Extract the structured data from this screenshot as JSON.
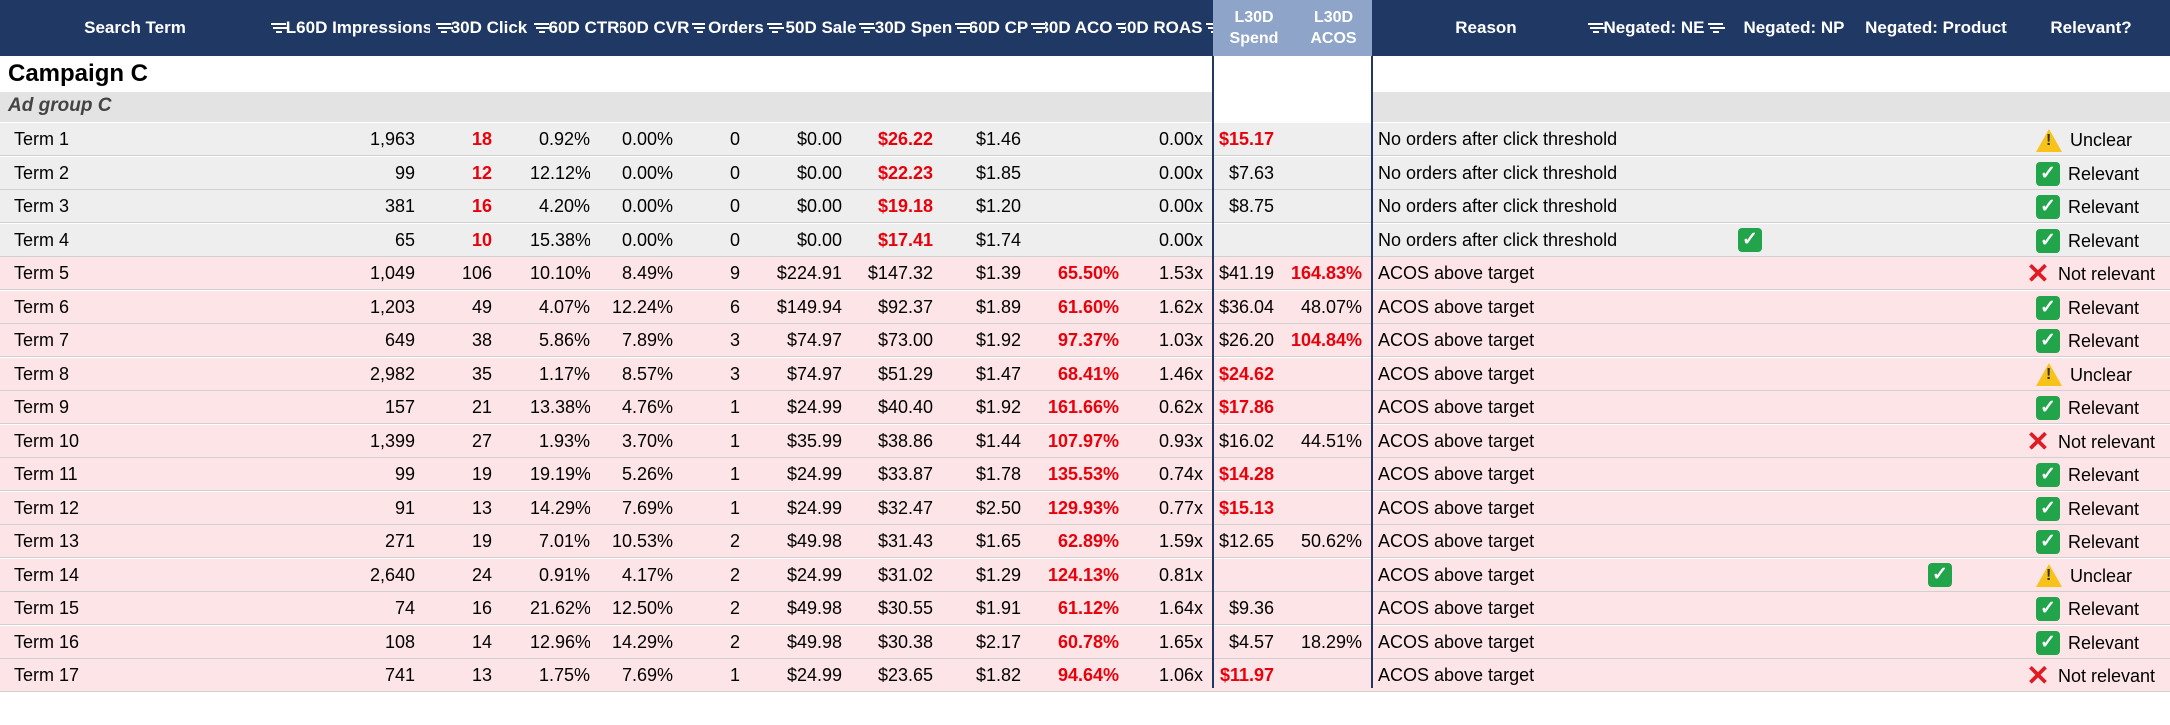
{
  "headers": {
    "search_term": "Search Term",
    "impressions": "L60D Impressions",
    "clicks": "30D Click",
    "ctr": "60D CTR",
    "cvr": "60D CVR",
    "orders": "Orders",
    "sales": "50D Sale",
    "spend": "30D Spen",
    "cpc": "60D CP",
    "acos": "30D ACO",
    "roas": "60D ROAS",
    "l30_spend_1": "L30D",
    "l30_spend_2": "Spend",
    "l30_acos_1": "L30D",
    "l30_acos_2": "ACOS",
    "reason": "Reason",
    "neg_ne": "Negated: NE",
    "neg_np": "Negated: NP",
    "neg_product": "Negated: Product",
    "relevant": "Relevant?"
  },
  "campaign": "Campaign C",
  "ad_group": "Ad group C",
  "colors": {
    "header": "#1f3864",
    "l30_header": "#8ea4c8",
    "alert_red": "#e8000b",
    "row_pink": "#fde4e6",
    "row_grey": "#eeeeee"
  },
  "rows": [
    {
      "term": "Term 1",
      "imp": "1,963",
      "clicks": "18",
      "ctr": "0.92%",
      "cvr": "0.00%",
      "orders": "0",
      "sales": "$0.00",
      "spend": "$26.22",
      "cpc": "$1.46",
      "acos": "",
      "roas": "0.00x",
      "l30spend": "$15.17",
      "l30acos": "",
      "reason": "No orders after click threshold",
      "ne": "",
      "np": "",
      "product": "",
      "relevant": "Unclear",
      "icon": "warning-icon",
      "band": "grey",
      "red": [
        "clicks",
        "spend",
        "l30spend"
      ]
    },
    {
      "term": "Term 2",
      "imp": "99",
      "clicks": "12",
      "ctr": "12.12%",
      "cvr": "0.00%",
      "orders": "0",
      "sales": "$0.00",
      "spend": "$22.23",
      "cpc": "$1.85",
      "acos": "",
      "roas": "0.00x",
      "l30spend": "$7.63",
      "l30acos": "",
      "reason": "No orders after click threshold",
      "ne": "",
      "np": "",
      "product": "",
      "relevant": "Relevant",
      "icon": "check-icon",
      "band": "grey",
      "red": [
        "clicks",
        "spend"
      ]
    },
    {
      "term": "Term 3",
      "imp": "381",
      "clicks": "16",
      "ctr": "4.20%",
      "cvr": "0.00%",
      "orders": "0",
      "sales": "$0.00",
      "spend": "$19.18",
      "cpc": "$1.20",
      "acos": "",
      "roas": "0.00x",
      "l30spend": "$8.75",
      "l30acos": "",
      "reason": "No orders after click threshold",
      "ne": "",
      "np": "",
      "product": "",
      "relevant": "Relevant",
      "icon": "check-icon",
      "band": "grey",
      "red": [
        "clicks",
        "spend"
      ]
    },
    {
      "term": "Term 4",
      "imp": "65",
      "clicks": "10",
      "ctr": "15.38%",
      "cvr": "0.00%",
      "orders": "0",
      "sales": "$0.00",
      "spend": "$17.41",
      "cpc": "$1.74",
      "acos": "",
      "roas": "0.00x",
      "l30spend": "",
      "l30acos": "",
      "reason": "No orders after click threshold",
      "ne": "",
      "np": "check",
      "product": "",
      "relevant": "Relevant",
      "icon": "check-icon",
      "band": "grey",
      "red": [
        "clicks",
        "spend"
      ]
    },
    {
      "term": "Term 5",
      "imp": "1,049",
      "clicks": "106",
      "ctr": "10.10%",
      "cvr": "8.49%",
      "orders": "9",
      "sales": "$224.91",
      "spend": "$147.32",
      "cpc": "$1.39",
      "acos": "65.50%",
      "roas": "1.53x",
      "l30spend": "$41.19",
      "l30acos": "164.83%",
      "reason": "ACOS above target",
      "ne": "",
      "np": "",
      "product": "",
      "relevant": "Not relevant",
      "icon": "x-icon",
      "band": "pink",
      "red": [
        "acos",
        "l30acos"
      ]
    },
    {
      "term": "Term 6",
      "imp": "1,203",
      "clicks": "49",
      "ctr": "4.07%",
      "cvr": "12.24%",
      "orders": "6",
      "sales": "$149.94",
      "spend": "$92.37",
      "cpc": "$1.89",
      "acos": "61.60%",
      "roas": "1.62x",
      "l30spend": "$36.04",
      "l30acos": "48.07%",
      "reason": "ACOS above target",
      "ne": "",
      "np": "",
      "product": "",
      "relevant": "Relevant",
      "icon": "check-icon",
      "band": "pink",
      "red": [
        "acos"
      ]
    },
    {
      "term": "Term 7",
      "imp": "649",
      "clicks": "38",
      "ctr": "5.86%",
      "cvr": "7.89%",
      "orders": "3",
      "sales": "$74.97",
      "spend": "$73.00",
      "cpc": "$1.92",
      "acos": "97.37%",
      "roas": "1.03x",
      "l30spend": "$26.20",
      "l30acos": "104.84%",
      "reason": "ACOS above target",
      "ne": "",
      "np": "",
      "product": "",
      "relevant": "Relevant",
      "icon": "check-icon",
      "band": "pink",
      "red": [
        "acos",
        "l30acos"
      ]
    },
    {
      "term": "Term 8",
      "imp": "2,982",
      "clicks": "35",
      "ctr": "1.17%",
      "cvr": "8.57%",
      "orders": "3",
      "sales": "$74.97",
      "spend": "$51.29",
      "cpc": "$1.47",
      "acos": "68.41%",
      "roas": "1.46x",
      "l30spend": "$24.62",
      "l30acos": "",
      "reason": "ACOS above target",
      "ne": "",
      "np": "",
      "product": "",
      "relevant": "Unclear",
      "icon": "warning-icon",
      "band": "pink",
      "red": [
        "acos",
        "l30spend"
      ]
    },
    {
      "term": "Term 9",
      "imp": "157",
      "clicks": "21",
      "ctr": "13.38%",
      "cvr": "4.76%",
      "orders": "1",
      "sales": "$24.99",
      "spend": "$40.40",
      "cpc": "$1.92",
      "acos": "161.66%",
      "roas": "0.62x",
      "l30spend": "$17.86",
      "l30acos": "",
      "reason": "ACOS above target",
      "ne": "",
      "np": "",
      "product": "",
      "relevant": "Relevant",
      "icon": "check-icon",
      "band": "pink",
      "red": [
        "acos",
        "l30spend"
      ]
    },
    {
      "term": "Term 10",
      "imp": "1,399",
      "clicks": "27",
      "ctr": "1.93%",
      "cvr": "3.70%",
      "orders": "1",
      "sales": "$35.99",
      "spend": "$38.86",
      "cpc": "$1.44",
      "acos": "107.97%",
      "roas": "0.93x",
      "l30spend": "$16.02",
      "l30acos": "44.51%",
      "reason": "ACOS above target",
      "ne": "",
      "np": "",
      "product": "",
      "relevant": "Not relevant",
      "icon": "x-icon",
      "band": "pink",
      "red": [
        "acos"
      ]
    },
    {
      "term": "Term 11",
      "imp": "99",
      "clicks": "19",
      "ctr": "19.19%",
      "cvr": "5.26%",
      "orders": "1",
      "sales": "$24.99",
      "spend": "$33.87",
      "cpc": "$1.78",
      "acos": "135.53%",
      "roas": "0.74x",
      "l30spend": "$14.28",
      "l30acos": "",
      "reason": "ACOS above target",
      "ne": "",
      "np": "",
      "product": "",
      "relevant": "Relevant",
      "icon": "check-icon",
      "band": "pink",
      "red": [
        "acos",
        "l30spend"
      ]
    },
    {
      "term": "Term 12",
      "imp": "91",
      "clicks": "13",
      "ctr": "14.29%",
      "cvr": "7.69%",
      "orders": "1",
      "sales": "$24.99",
      "spend": "$32.47",
      "cpc": "$2.50",
      "acos": "129.93%",
      "roas": "0.77x",
      "l30spend": "$15.13",
      "l30acos": "",
      "reason": "ACOS above target",
      "ne": "",
      "np": "",
      "product": "",
      "relevant": "Relevant",
      "icon": "check-icon",
      "band": "pink",
      "red": [
        "acos",
        "l30spend"
      ]
    },
    {
      "term": "Term 13",
      "imp": "271",
      "clicks": "19",
      "ctr": "7.01%",
      "cvr": "10.53%",
      "orders": "2",
      "sales": "$49.98",
      "spend": "$31.43",
      "cpc": "$1.65",
      "acos": "62.89%",
      "roas": "1.59x",
      "l30spend": "$12.65",
      "l30acos": "50.62%",
      "reason": "ACOS above target",
      "ne": "",
      "np": "",
      "product": "",
      "relevant": "Relevant",
      "icon": "check-icon",
      "band": "pink",
      "red": [
        "acos"
      ]
    },
    {
      "term": "Term 14",
      "imp": "2,640",
      "clicks": "24",
      "ctr": "0.91%",
      "cvr": "4.17%",
      "orders": "2",
      "sales": "$24.99",
      "spend": "$31.02",
      "cpc": "$1.29",
      "acos": "124.13%",
      "roas": "0.81x",
      "l30spend": "",
      "l30acos": "",
      "reason": "ACOS above target",
      "ne": "",
      "np": "",
      "product": "check",
      "relevant": "Unclear",
      "icon": "warning-icon",
      "band": "pink",
      "red": [
        "acos"
      ]
    },
    {
      "term": "Term 15",
      "imp": "74",
      "clicks": "16",
      "ctr": "21.62%",
      "cvr": "12.50%",
      "orders": "2",
      "sales": "$49.98",
      "spend": "$30.55",
      "cpc": "$1.91",
      "acos": "61.12%",
      "roas": "1.64x",
      "l30spend": "$9.36",
      "l30acos": "",
      "reason": "ACOS above target",
      "ne": "",
      "np": "",
      "product": "",
      "relevant": "Relevant",
      "icon": "check-icon",
      "band": "pink",
      "red": [
        "acos"
      ]
    },
    {
      "term": "Term 16",
      "imp": "108",
      "clicks": "14",
      "ctr": "12.96%",
      "cvr": "14.29%",
      "orders": "2",
      "sales": "$49.98",
      "spend": "$30.38",
      "cpc": "$2.17",
      "acos": "60.78%",
      "roas": "1.65x",
      "l30spend": "$4.57",
      "l30acos": "18.29%",
      "reason": "ACOS above target",
      "ne": "",
      "np": "",
      "product": "",
      "relevant": "Relevant",
      "icon": "check-icon",
      "band": "pink",
      "red": [
        "acos"
      ]
    },
    {
      "term": "Term 17",
      "imp": "741",
      "clicks": "13",
      "ctr": "1.75%",
      "cvr": "7.69%",
      "orders": "1",
      "sales": "$24.99",
      "spend": "$23.65",
      "cpc": "$1.82",
      "acos": "94.64%",
      "roas": "1.06x",
      "l30spend": "$11.97",
      "l30acos": "",
      "reason": "ACOS above target",
      "ne": "",
      "np": "",
      "product": "",
      "relevant": "Not relevant",
      "icon": "x-icon",
      "band": "pink",
      "red": [
        "acos",
        "l30spend"
      ]
    }
  ]
}
